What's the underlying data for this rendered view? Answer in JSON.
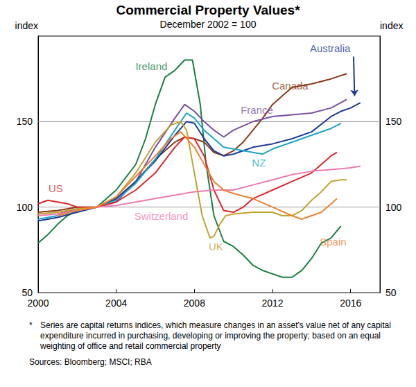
{
  "chart_data": {
    "type": "line",
    "title": "Commercial Property Values*",
    "subtitle": "December 2002 = 100",
    "y_label": "index",
    "xlim": [
      2000,
      2017.5
    ],
    "xticks": [
      2000,
      2004,
      2008,
      2012,
      2016
    ],
    "ylim": [
      50,
      200
    ],
    "yticks": [
      50,
      100,
      150
    ],
    "grid": true,
    "series": [
      {
        "name": "Ireland",
        "color": "#1a7f45",
        "x": [
          2000,
          2000.5,
          2001,
          2001.5,
          2002,
          2003,
          2004,
          2005,
          2005.5,
          2006,
          2006.5,
          2007,
          2007.5,
          2007.9,
          2008.3,
          2008.6,
          2009,
          2009.5,
          2010,
          2010.5,
          2011,
          2011.5,
          2012,
          2012.5,
          2013,
          2013.5,
          2014,
          2014.5,
          2015,
          2015.5
        ],
        "values": [
          79,
          84,
          90,
          95,
          98,
          100,
          110,
          125,
          140,
          160,
          176,
          180,
          186,
          186,
          160,
          125,
          95,
          80,
          77,
          72,
          66,
          63,
          61,
          59,
          59,
          63,
          70,
          79,
          82,
          89
        ]
      },
      {
        "name": "Canada",
        "color": "#8b3a1a",
        "x": [
          2000,
          2001,
          2002,
          2003,
          2004,
          2005,
          2006,
          2007,
          2007.5,
          2008,
          2008.5,
          2009,
          2009.5,
          2010,
          2010.5,
          2011,
          2011.5,
          2012,
          2012.5,
          2013,
          2014,
          2015,
          2015.8
        ],
        "values": [
          97,
          98,
          100,
          100,
          105,
          115,
          128,
          138,
          141,
          140,
          138,
          132,
          130,
          133,
          138,
          145,
          152,
          160,
          165,
          170,
          172,
          175,
          178
        ]
      },
      {
        "name": "France",
        "color": "#7a4fa3",
        "x": [
          2001,
          2002,
          2003,
          2004,
          2005,
          2006,
          2007,
          2007.5,
          2008,
          2008.5,
          2009,
          2009.5,
          2010,
          2011,
          2012,
          2013,
          2014,
          2015,
          2015.8
        ],
        "values": [
          96,
          99,
          100,
          103,
          115,
          135,
          152,
          160,
          156,
          150,
          145,
          141,
          145,
          150,
          153,
          154,
          155,
          158,
          163
        ]
      },
      {
        "name": "Australia",
        "color": "#1e3a96",
        "x": [
          2000,
          2001,
          2002,
          2003,
          2004,
          2005,
          2006,
          2007,
          2007.6,
          2008,
          2008.5,
          2009,
          2009.5,
          2010,
          2010.5,
          2011,
          2012,
          2013,
          2014,
          2015,
          2015.5,
          2016,
          2016.5
        ],
        "values": [
          92,
          94,
          97,
          100,
          105,
          115,
          127,
          142,
          150,
          149,
          140,
          133,
          130,
          131,
          133,
          135,
          137,
          140,
          144,
          153,
          156,
          158,
          161
        ]
      },
      {
        "name": "NZ",
        "color": "#1aa6c9",
        "x": [
          2000,
          2001,
          2002,
          2003,
          2004,
          2005,
          2006,
          2007,
          2007.6,
          2008,
          2008.5,
          2009,
          2009.5,
          2010,
          2011,
          2011.5,
          2012,
          2013,
          2014,
          2015,
          2015.5
        ],
        "values": [
          93,
          95,
          98,
          100,
          104,
          114,
          128,
          145,
          155,
          152,
          145,
          140,
          135,
          134,
          132,
          131,
          134,
          138,
          142,
          146,
          149
        ]
      },
      {
        "name": "US",
        "color": "#e0262b",
        "x": [
          2000,
          2000.5,
          2001,
          2001.5,
          2002,
          2003,
          2004,
          2005,
          2006,
          2007,
          2007.5,
          2008,
          2008.5,
          2009,
          2009.5,
          2010,
          2010.5,
          2011,
          2012,
          2013,
          2014,
          2014.5,
          2015,
          2015.3
        ],
        "values": [
          102,
          104,
          103,
          102,
          100,
          100,
          103,
          110,
          120,
          135,
          141,
          140,
          130,
          110,
          98,
          97,
          100,
          105,
          110,
          115,
          120,
          125,
          130,
          132
        ]
      },
      {
        "name": "Switzerland",
        "color": "#f07ab0",
        "x": [
          2000,
          2001,
          2002,
          2003,
          2004,
          2005,
          2006,
          2007,
          2008,
          2009,
          2010,
          2011,
          2012,
          2013,
          2014,
          2015,
          2016,
          2016.5
        ],
        "values": [
          95,
          96,
          98,
          100,
          101,
          103,
          105,
          107,
          109,
          110,
          110,
          113,
          116,
          119,
          121,
          122,
          123,
          124
        ]
      },
      {
        "name": "UK",
        "color": "#bfa331",
        "x": [
          2000,
          2001,
          2002,
          2003,
          2004,
          2005,
          2006,
          2006.8,
          2007.3,
          2007.6,
          2008,
          2008.4,
          2008.8,
          2009,
          2009.3,
          2009.6,
          2010,
          2011,
          2012,
          2012.5,
          2013,
          2013.5,
          2014,
          2014.5,
          2015,
          2015.5,
          2015.8
        ],
        "values": [
          96,
          97,
          99,
          100,
          106,
          120,
          138,
          148,
          150,
          145,
          120,
          95,
          82,
          83,
          90,
          95,
          96,
          97,
          97,
          95,
          95,
          98,
          104,
          109,
          115,
          116,
          116
        ]
      },
      {
        "name": "Spain",
        "color": "#f28030",
        "x": [
          2001,
          2002,
          2003,
          2004,
          2005,
          2006,
          2006.8,
          2007.3,
          2008,
          2008.5,
          2009,
          2009.5,
          2010,
          2011,
          2012,
          2013,
          2013.5,
          2014,
          2014.5,
          2015,
          2015.3
        ],
        "values": [
          95,
          98,
          100,
          106,
          118,
          130,
          140,
          144,
          135,
          125,
          115,
          110,
          108,
          105,
          100,
          95,
          93,
          95,
          97,
          102,
          105
        ]
      }
    ],
    "annotations": [
      {
        "text": "Ireland",
        "x": 2005.8,
        "y": 182.5,
        "color": "#1a7f45"
      },
      {
        "text": "Canada",
        "x": 2012.9,
        "y": 171,
        "color": "#8b3a1a"
      },
      {
        "text": "France",
        "x": 2011.2,
        "y": 157,
        "color": "#7a4fa3"
      },
      {
        "text": "NZ",
        "x": 2011.3,
        "y": 126,
        "color": "#1aa6c9"
      },
      {
        "text": "US",
        "x": 2000.9,
        "y": 111,
        "color": "#e0262b"
      },
      {
        "text": "Switzerland",
        "x": 2006.3,
        "y": 95,
        "color": "#f07ab0"
      },
      {
        "text": "UK",
        "x": 2009.1,
        "y": 77,
        "color": "#bfa331"
      },
      {
        "text": "Spain",
        "x": 2015.1,
        "y": 80,
        "color": "#f28030"
      },
      {
        "text": "Australia",
        "x": 2014.95,
        "y": 193,
        "color": "#1e3a96",
        "arrow_from": [
          2016.15,
          188
        ],
        "arrow_to": [
          2016.2,
          165
        ]
      }
    ],
    "footnote": "Series are capital returns indices, which measure changes in an asset's value net of any capital expenditure incurred in purchasing, developing or improving the property; based on an equal weighting of office and retail commercial property",
    "footnote_mark": "*",
    "sources": "Sources: Bloomberg; MSCI; RBA"
  }
}
